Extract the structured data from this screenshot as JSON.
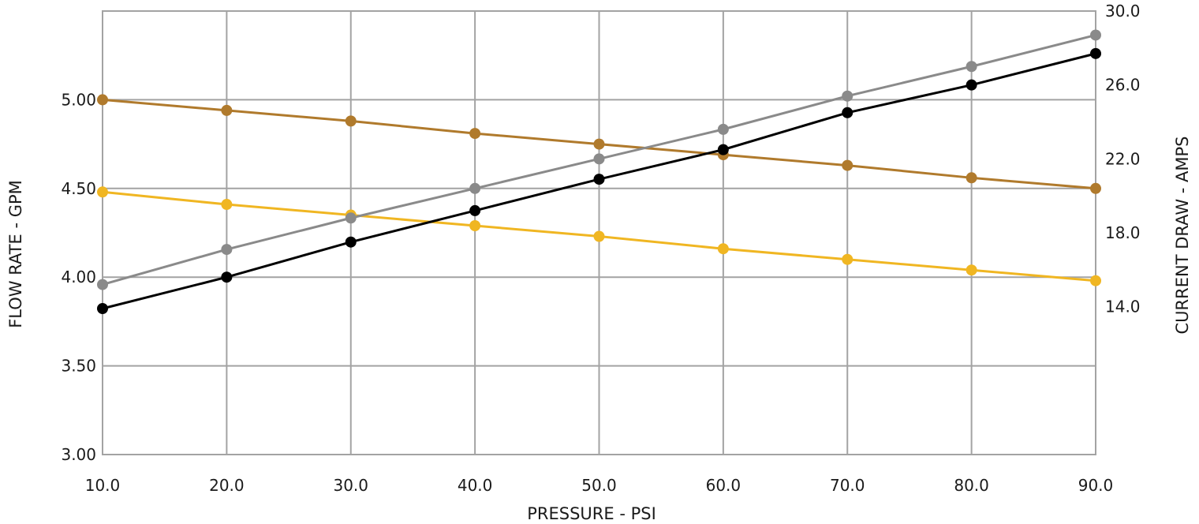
{
  "chart_data": {
    "type": "line",
    "xlabel": "PRESSURE - PSI",
    "ylabel_left": "FLOW RATE - GPM",
    "ylabel_right": "CURRENT DRAW - AMPS",
    "x": [
      10,
      20,
      30,
      40,
      50,
      60,
      70,
      80,
      90
    ],
    "x_tick_labels": [
      "10.0",
      "20.0",
      "30.0",
      "40.0",
      "50.0",
      "60.0",
      "70.0",
      "80.0",
      "90.0"
    ],
    "xlim": [
      10,
      90
    ],
    "ylim_left": [
      3.0,
      5.5
    ],
    "ylim_right": [
      6.0,
      30.0
    ],
    "y_left_ticks": [
      3.0,
      3.5,
      4.0,
      4.5,
      5.0
    ],
    "y_left_tick_labels": [
      "3.00",
      "3.50",
      "4.00",
      "4.50",
      "5.00"
    ],
    "y_right_ticks": [
      14.0,
      18.0,
      22.0,
      26.0,
      30.0
    ],
    "y_right_tick_labels": [
      "14.0",
      "18.0",
      "22.0",
      "26.0",
      "30.0"
    ],
    "grid": true,
    "legend": "none",
    "series": [
      {
        "axis": "left",
        "color": "#b07a2c",
        "values": [
          5.0,
          4.94,
          4.88,
          4.81,
          4.75,
          4.69,
          4.63,
          4.56,
          4.5
        ]
      },
      {
        "axis": "left",
        "color": "#f0b622",
        "values": [
          4.48,
          4.41,
          4.35,
          4.29,
          4.23,
          4.16,
          4.1,
          4.04,
          3.98
        ]
      },
      {
        "axis": "right",
        "color": "#8a8a8a",
        "values": [
          15.2,
          17.1,
          18.8,
          20.4,
          22.0,
          23.6,
          25.4,
          27.0,
          28.7
        ]
      },
      {
        "axis": "right",
        "color": "#000000",
        "values": [
          13.9,
          15.6,
          17.5,
          19.2,
          20.9,
          22.5,
          24.5,
          26.0,
          27.7
        ]
      }
    ]
  }
}
